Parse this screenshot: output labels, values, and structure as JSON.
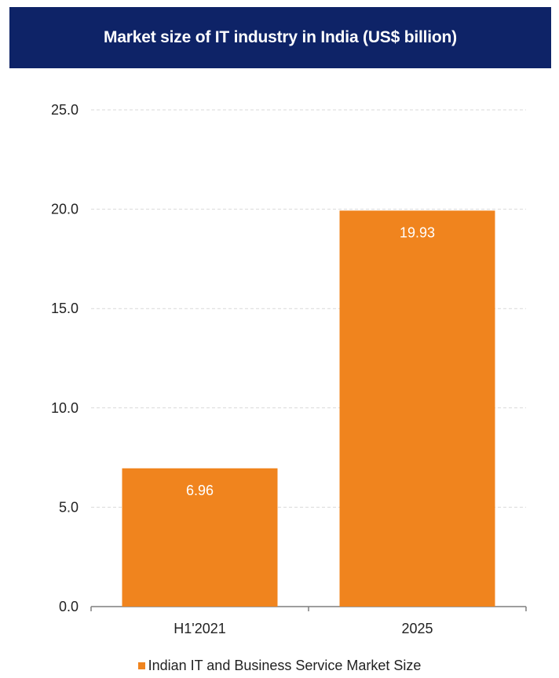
{
  "colors": {
    "title_bg": "#0e2367",
    "bar": "#f0841e",
    "grid": "#d9d9d9",
    "axis": "#7f7f7f"
  },
  "chart_data": {
    "type": "bar",
    "title": "Market size of IT industry in India (US$ billion)",
    "categories": [
      "H1'2021",
      "2025"
    ],
    "series": [
      {
        "name": "Indian IT and Business Service Market Size",
        "values": [
          6.96,
          19.93
        ],
        "labels": [
          "6.96",
          "19.93"
        ]
      }
    ],
    "ylim": [
      0,
      25
    ],
    "yticks": [
      "0.0",
      "5.0",
      "10.0",
      "15.0",
      "20.0",
      "25.0"
    ],
    "ytick_values": [
      0,
      5,
      10,
      15,
      20,
      25
    ],
    "grid": true,
    "legend_position": "bottom"
  }
}
